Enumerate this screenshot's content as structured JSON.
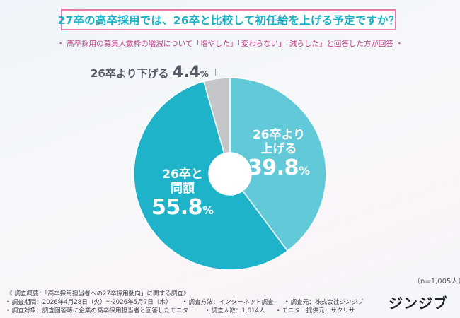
{
  "header": {
    "title": "27卒の高卒採用では、26卒と比較して初任給を上げる予定ですか？",
    "subtitle": "・ 高卒採用の募集人数枠の増減について「増やした」「変わらない」「減らした」と回答した方が回答 ・"
  },
  "chart_data": {
    "type": "pie",
    "title": "27卒の高卒採用では、26卒と比較して初任給を上げる予定ですか？",
    "donut": true,
    "categories": [
      "26卒より上げる",
      "26卒と同額",
      "26卒より下げる"
    ],
    "values": [
      39.8,
      55.8,
      4.4
    ],
    "unit": "%",
    "colors": [
      "#62c9d9",
      "#1fb3c9",
      "#c3c5c9"
    ],
    "labels": {
      "up": {
        "line1": "26卒より",
        "line2": "上げる",
        "num": "39.8",
        "unit": "%"
      },
      "same": {
        "line1": "26卒と",
        "line2": "同額",
        "num": "55.8",
        "unit": "%"
      },
      "down": {
        "text": "26卒より下げる",
        "num": "4.4",
        "unit": "%"
      }
    },
    "n_label": "（n=1,005人）"
  },
  "footer": {
    "line1": "《 調査概要：「高卒採用担当者への27卒採用動向」に関する調査》",
    "line2": [
      "• 調査期間：2026年4月28日（火）〜2026年5月7日（木）",
      "• 調査方法：インターネット調査",
      "• 調査元：株式会社ジンジブ"
    ],
    "line3": [
      "• 調査対象：調査回答時に企業の高卒採用担当者と回答したモニター",
      "• 調査人数：1,014人",
      "• モニター提供元：サクリサ"
    ]
  },
  "logo": "ジンジブ"
}
